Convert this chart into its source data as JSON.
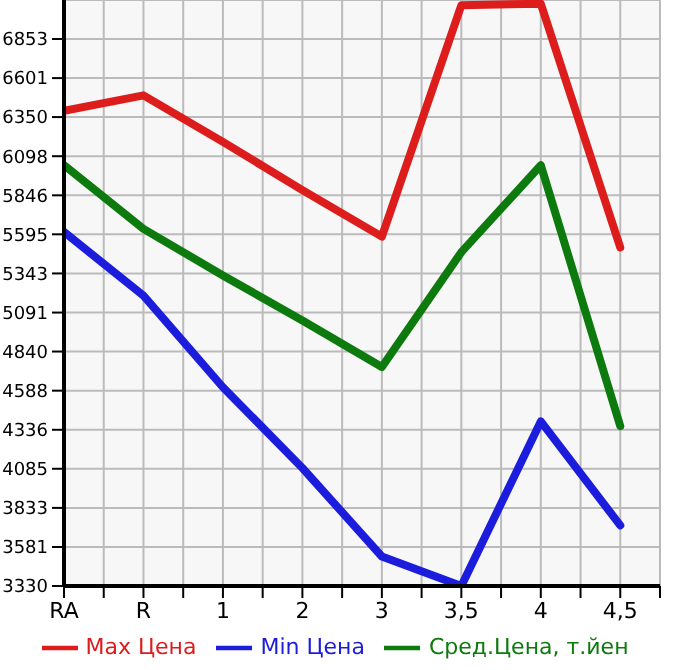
{
  "chart_data": {
    "type": "line",
    "categories": [
      "RA",
      "R",
      "1",
      "2",
      "3",
      "3,5",
      "4",
      "4,5"
    ],
    "series": [
      {
        "name": "Max Цена",
        "color": "#dd1c1c",
        "values": [
          6390,
          6490,
          6190,
          5880,
          5580,
          7070,
          7080,
          5510
        ]
      },
      {
        "name": "Min Цена",
        "color": "#1c1cdd",
        "values": [
          5610,
          5200,
          4610,
          4090,
          3520,
          3330,
          4390,
          3720
        ]
      },
      {
        "name": "Сред.Цена, т.йен",
        "color": "#0d7a0d",
        "values": [
          6040,
          5630,
          5330,
          5040,
          4740,
          5480,
          6040,
          4360
        ]
      }
    ],
    "ylim": [
      3330,
      7104
    ],
    "yticks": [
      3330,
      3581,
      3833,
      4085,
      4336,
      4588,
      4840,
      5091,
      5343,
      5595,
      5846,
      6098,
      6350,
      6601,
      6853
    ],
    "grid": true,
    "legend": "bottom",
    "marker": "none",
    "line_style": "solid"
  }
}
